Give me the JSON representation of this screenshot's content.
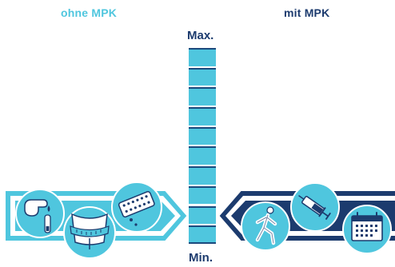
{
  "header": {
    "left_label": "ohne MPK",
    "right_label": "mit MPK",
    "left_color": "#4fc6de",
    "right_color": "#1c3b6e"
  },
  "scale": {
    "max_label": "Max.",
    "min_label": "Min.",
    "segment_count": 10,
    "fill_color": "#4fc6de",
    "line_color": "#1c4a7d"
  },
  "left_arrow": {
    "direction": "right",
    "icons": [
      "finger-blood-drop-icon",
      "waist-measuring-tape-icon",
      "pill-blister-icon"
    ]
  },
  "right_arrow": {
    "direction": "left",
    "icons": [
      "runner-icon",
      "syringe-icon",
      "calendar-icon"
    ]
  }
}
